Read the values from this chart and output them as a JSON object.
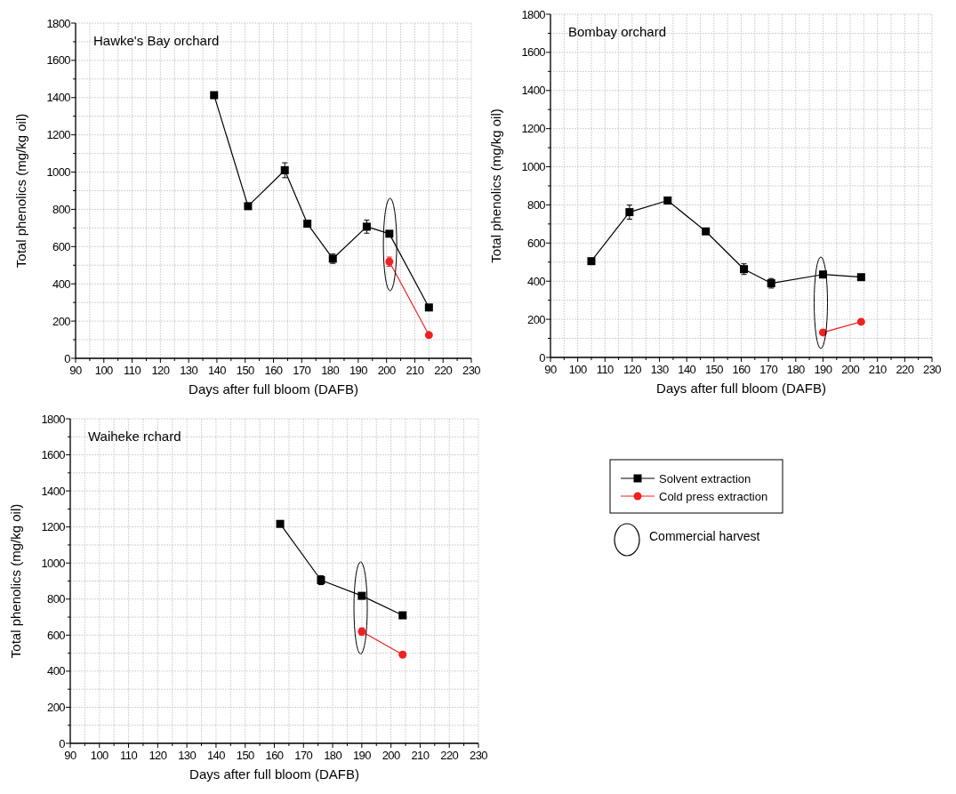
{
  "chart_data": [
    {
      "type": "line",
      "title": "Hawke's Bay orchard",
      "xlabel": "Days after full bloom (DAFB)",
      "ylabel": "Total phenolics (mg/kg oil)",
      "xlim": [
        90,
        230
      ],
      "xticks": [
        90,
        100,
        110,
        120,
        130,
        140,
        150,
        160,
        170,
        180,
        190,
        200,
        210,
        220,
        230
      ],
      "ylim": [
        0,
        1800
      ],
      "yticks": [
        0,
        200,
        400,
        600,
        800,
        1000,
        1200,
        1400,
        1600,
        1800
      ],
      "grid": true,
      "legend": false,
      "line_style": "solid",
      "series": [
        {
          "color": "#000000",
          "marker": "square",
          "x": [
            139,
            151,
            164,
            172,
            181,
            193,
            201,
            215
          ],
          "values": [
            1413,
            817,
            1010,
            723,
            535,
            707,
            669,
            273
          ],
          "errors": [
            null,
            null,
            40,
            null,
            25,
            35,
            null,
            null
          ]
        },
        {
          "color": "#ee2222",
          "marker": "circle",
          "x": [
            201,
            215
          ],
          "values": [
            519,
            125
          ],
          "errors": [
            25,
            null
          ]
        }
      ]
    },
    {
      "type": "line",
      "title": "Bombay  orchard",
      "xlabel": "Days after full bloom (DAFB)",
      "ylabel": "Total phenolics (mg/kg oil)",
      "xlim": [
        90,
        230
      ],
      "xticks": [
        90,
        100,
        110,
        120,
        130,
        140,
        150,
        160,
        170,
        180,
        190,
        200,
        210,
        220,
        230
      ],
      "ylim": [
        0,
        1800
      ],
      "yticks": [
        0,
        200,
        400,
        600,
        800,
        1000,
        1200,
        1400,
        1600,
        1800
      ],
      "grid": true,
      "legend": false,
      "line_style": "solid",
      "series": [
        {
          "color": "#000000",
          "marker": "square",
          "x": [
            105,
            119,
            133,
            147,
            161,
            171,
            190,
            204
          ],
          "values": [
            505,
            762,
            823,
            661,
            463,
            389,
            435,
            421
          ],
          "errors": [
            null,
            37,
            null,
            null,
            28,
            25,
            null,
            null
          ]
        },
        {
          "color": "#ee2222",
          "marker": "circle",
          "x": [
            190,
            204
          ],
          "values": [
            131,
            187
          ]
        }
      ]
    },
    {
      "type": "line",
      "title": "Waiheke rchard",
      "xlabel": "Days after full bloom (DAFB)",
      "ylabel": "Total phenolics (mg/kg oil)",
      "xlim": [
        90,
        230
      ],
      "xticks": [
        90,
        100,
        110,
        120,
        130,
        140,
        150,
        160,
        170,
        180,
        190,
        200,
        210,
        220,
        230
      ],
      "ylim": [
        0,
        1800
      ],
      "yticks": [
        0,
        200,
        400,
        600,
        800,
        1000,
        1200,
        1400,
        1600,
        1800
      ],
      "grid": true,
      "legend": "right",
      "line_style": "solid",
      "annotations": [
        "Commercial harvest"
      ],
      "series": [
        {
          "name": "Solvent extraction",
          "color": "#000000",
          "marker": "square",
          "x": [
            162,
            176,
            190,
            204
          ],
          "values": [
            1217,
            905,
            818,
            710
          ],
          "errors": [
            null,
            25,
            null,
            null
          ]
        },
        {
          "name": "Cold press extraction",
          "color": "#ee2222",
          "marker": "circle",
          "x": [
            190,
            204
          ],
          "values": [
            620,
            492
          ],
          "errors": [
            20,
            null
          ]
        }
      ]
    }
  ]
}
